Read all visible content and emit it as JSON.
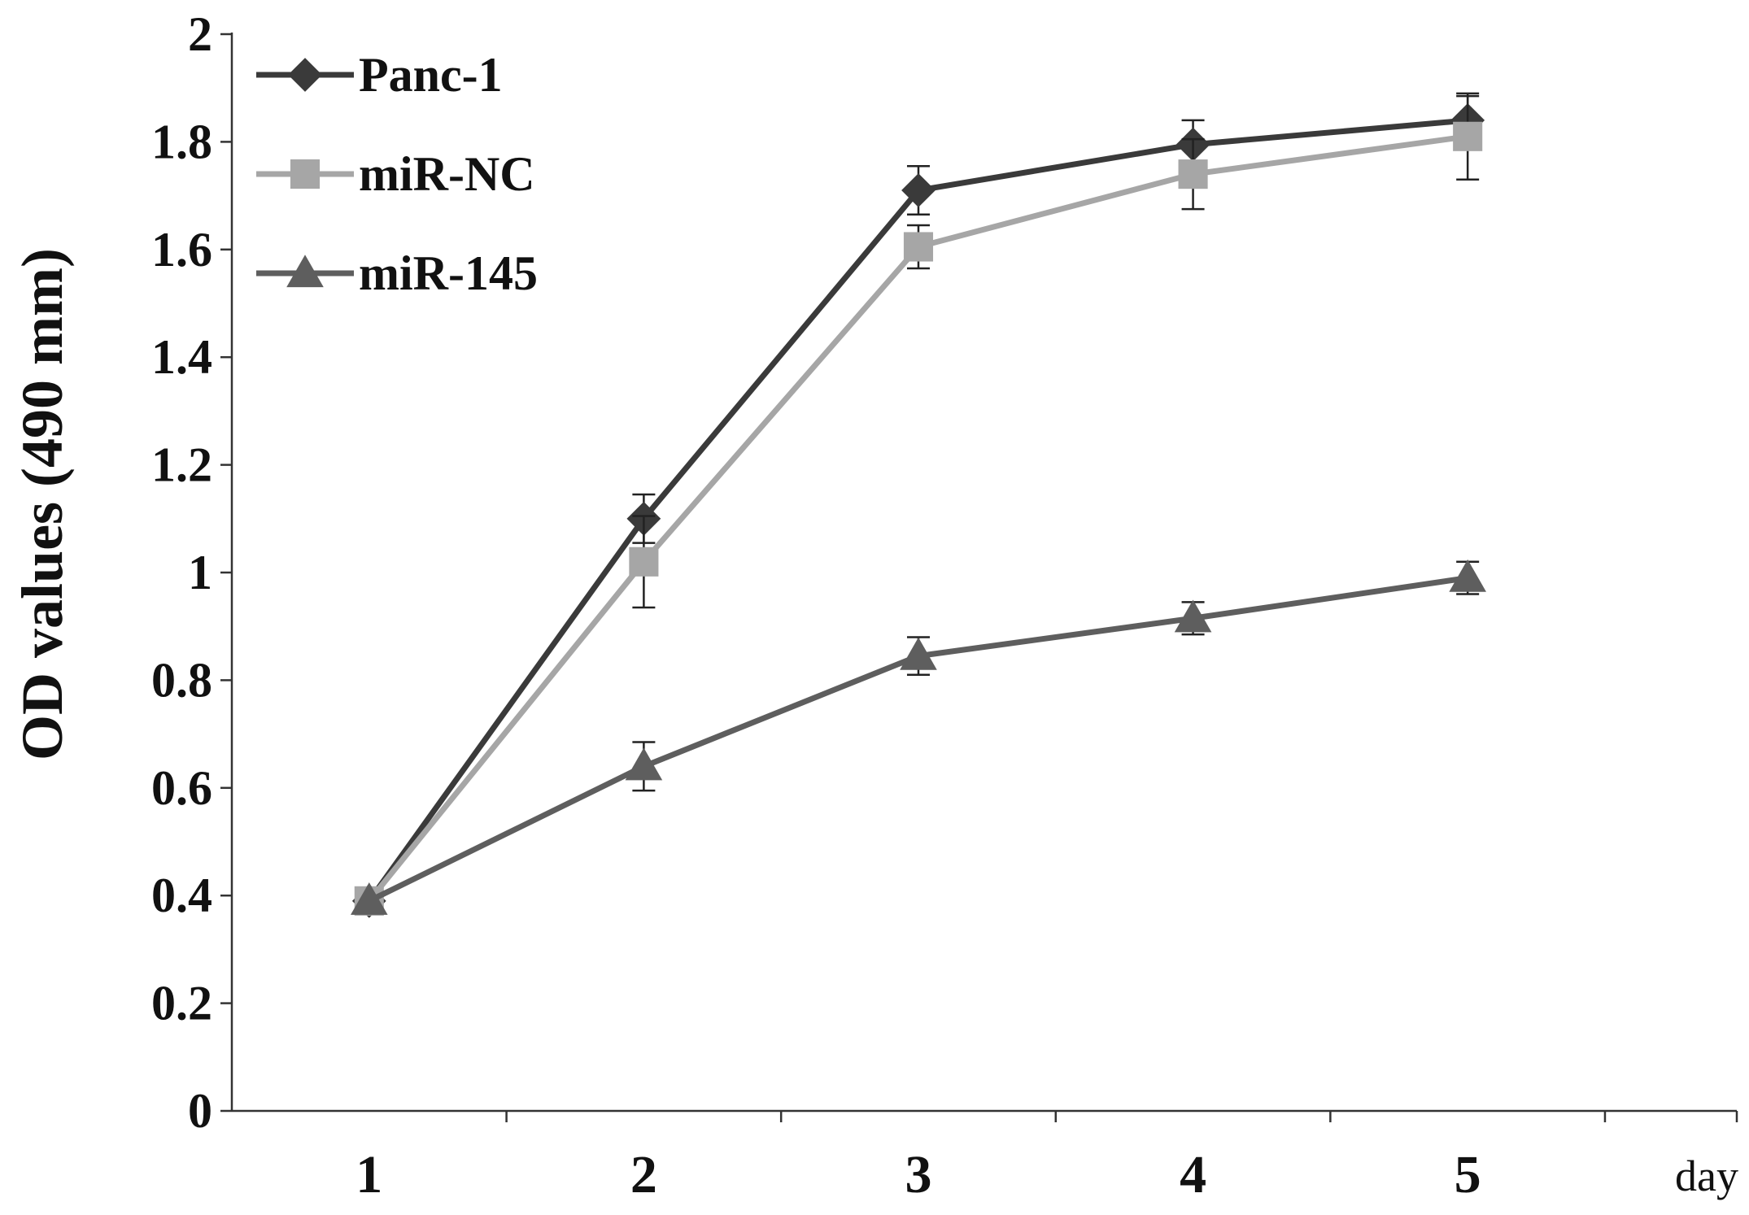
{
  "chart_data": {
    "type": "line",
    "x": [
      1,
      2,
      3,
      4,
      5
    ],
    "x_tick_labels": [
      "1",
      "2",
      "3",
      "4",
      "5"
    ],
    "x_unit_label": "day",
    "ylabel": "OD values (490 mm)",
    "ylim": [
      0,
      2
    ],
    "y_ticks": [
      0,
      0.2,
      0.4,
      0.6,
      0.8,
      1,
      1.2,
      1.4,
      1.6,
      1.8,
      2
    ],
    "y_tick_labels": [
      "0",
      "0.2",
      "0.4",
      "0.6",
      "0.8",
      "1",
      "1.2",
      "1.4",
      "1.6",
      "1.8",
      "2"
    ],
    "grid": false,
    "legend_position": "top-left",
    "series": [
      {
        "name": "Panc-1",
        "color": "#3a3a3a",
        "marker": "diamond",
        "values": [
          0.39,
          1.1,
          1.71,
          1.795,
          1.84
        ],
        "errors": [
          0.0,
          0.045,
          0.045,
          0.045,
          0.045
        ]
      },
      {
        "name": "miR-NC",
        "color": "#a6a6a6",
        "marker": "square",
        "values": [
          0.39,
          1.02,
          1.605,
          1.74,
          1.81
        ],
        "errors": [
          0.0,
          0.085,
          0.04,
          0.065,
          0.08
        ]
      },
      {
        "name": "miR-145",
        "color": "#5e5e5e",
        "marker": "triangle",
        "values": [
          0.39,
          0.64,
          0.845,
          0.915,
          0.99
        ],
        "errors": [
          0.0,
          0.045,
          0.035,
          0.03,
          0.03
        ]
      }
    ]
  }
}
